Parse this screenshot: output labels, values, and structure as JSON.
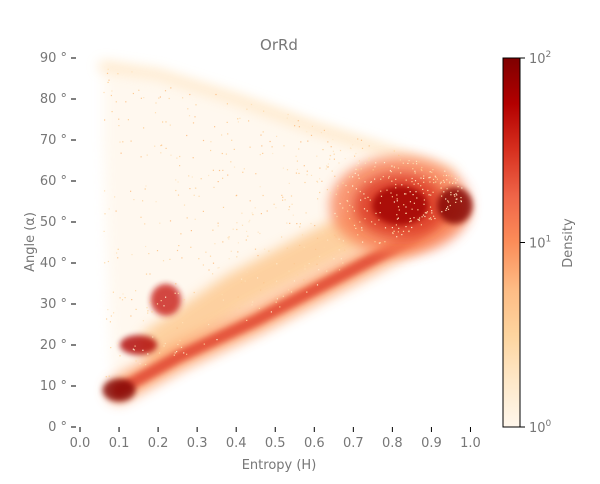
{
  "chart_data": {
    "type": "heatmap",
    "title": "OrRd",
    "xlabel": "Entropy (H)",
    "ylabel": "Angle (α)",
    "xlim": [
      0.0,
      1.05
    ],
    "ylim": [
      0,
      90
    ],
    "xticks": [
      "0.0",
      "0.1",
      "0.2",
      "0.3",
      "0.4",
      "0.5",
      "0.6",
      "0.7",
      "0.8",
      "0.9",
      "1.0"
    ],
    "xtick_values": [
      0.0,
      0.1,
      0.2,
      0.3,
      0.4,
      0.5,
      0.6,
      0.7,
      0.8,
      0.9,
      1.0
    ],
    "yticks": [
      "0 °",
      "10 °",
      "20 °",
      "30 °",
      "40 °",
      "50 °",
      "60 °",
      "70 °",
      "80 °",
      "90 °"
    ],
    "ytick_values": [
      0,
      10,
      20,
      30,
      40,
      50,
      60,
      70,
      80,
      90
    ],
    "grid": false,
    "colormap": "OrRd",
    "colorbar": {
      "label": "Density",
      "scale": "log",
      "range": [
        1,
        100
      ],
      "ticks": [
        {
          "base": "10",
          "exp": "0",
          "value": 1
        },
        {
          "base": "10",
          "exp": "1",
          "value": 10
        },
        {
          "base": "10",
          "exp": "2",
          "value": 100
        }
      ],
      "colors": [
        "#fff7ec",
        "#fee8c8",
        "#fdd49e",
        "#fdbb84",
        "#fc8d59",
        "#ef6548",
        "#d7301f",
        "#b30000",
        "#7f0000"
      ]
    },
    "density_features": [
      {
        "name": "upper-boundary-arc",
        "points": [
          [
            0.06,
            88
          ],
          [
            0.2,
            86
          ],
          [
            0.4,
            80
          ],
          [
            0.6,
            73
          ],
          [
            0.8,
            67
          ],
          [
            0.95,
            62
          ]
        ],
        "level": 2
      },
      {
        "name": "main-dense-cluster",
        "center": [
          0.82,
          54
        ],
        "spread": [
          0.09,
          6
        ],
        "level": 70
      },
      {
        "name": "apex-peak",
        "center": [
          0.96,
          54
        ],
        "spread": [
          0.03,
          3
        ],
        "level": 100
      },
      {
        "name": "lower-branch",
        "points": [
          [
            0.1,
            9
          ],
          [
            0.25,
            17
          ],
          [
            0.45,
            26
          ],
          [
            0.65,
            36
          ],
          [
            0.85,
            46
          ],
          [
            0.96,
            53
          ]
        ],
        "level": 25
      },
      {
        "name": "low-entropy-peak",
        "center": [
          0.1,
          9
        ],
        "spread": [
          0.03,
          2
        ],
        "level": 100
      },
      {
        "name": "knob-20deg",
        "center": [
          0.15,
          20
        ],
        "spread": [
          0.04,
          2
        ],
        "level": 60
      },
      {
        "name": "knob-31deg",
        "center": [
          0.22,
          31
        ],
        "spread": [
          0.03,
          3
        ],
        "level": 40
      }
    ]
  }
}
